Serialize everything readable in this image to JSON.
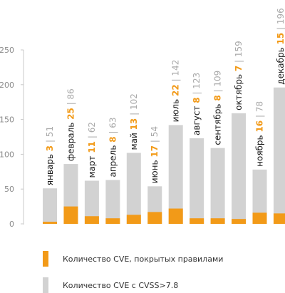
{
  "chart_data": {
    "type": "bar",
    "categories": [
      "январь",
      "февраль",
      "март",
      "апрель",
      "май",
      "июнь",
      "июль",
      "август",
      "сентябрь",
      "октябрь",
      "ноябрь",
      "декабрь"
    ],
    "series": [
      {
        "name": "Количество CVE, покрытых правилами",
        "values": [
          3,
          25,
          11,
          8,
          13,
          17,
          22,
          8,
          8,
          7,
          16,
          15
        ],
        "color": "#f29a18"
      },
      {
        "name": "Количество CVE с CVSS>7.8",
        "values": [
          51,
          86,
          62,
          63,
          102,
          54,
          142,
          123,
          109,
          159,
          78,
          196
        ],
        "color": "#d2d2d2"
      }
    ],
    "ylim": [
      0,
      250
    ],
    "yticks": [
      0,
      50,
      100,
      150,
      200,
      250
    ],
    "grid": false,
    "legend_position": "bottom"
  }
}
